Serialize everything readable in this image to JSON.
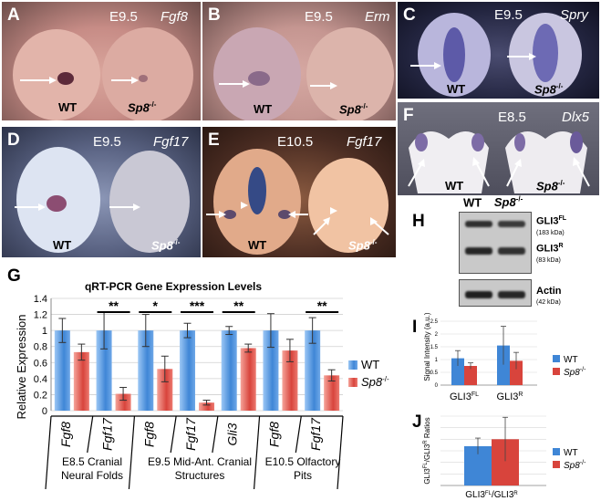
{
  "panels": {
    "A": {
      "label": "A",
      "stage": "E9.5",
      "gene": "Fgf8",
      "wt": "WT",
      "mut": "Sp8",
      "mut_sup": "-/-"
    },
    "B": {
      "label": "B",
      "stage": "E9.5",
      "gene": "Erm",
      "wt": "WT",
      "mut": "Sp8",
      "mut_sup": "-/-"
    },
    "C": {
      "label": "C",
      "stage": "E9.5",
      "gene": "Spry",
      "wt": "WT",
      "mut": "Sp8",
      "mut_sup": "-/-"
    },
    "D": {
      "label": "D",
      "stage": "E9.5",
      "gene": "Fgf17",
      "wt": "WT",
      "mut": "Sp8",
      "mut_sup": "-/-"
    },
    "E": {
      "label": "E",
      "stage": "E10.5",
      "gene": "Fgf17",
      "wt": "WT",
      "mut": "Sp8",
      "mut_sup": "-/-"
    },
    "F": {
      "label": "F",
      "stage": "E8.5",
      "gene": "Dlx5",
      "wt": "WT",
      "mut": "Sp8",
      "mut_sup": "-/-"
    }
  },
  "panel_G": {
    "label": "G",
    "sig_marks": [
      "**",
      "*",
      "***",
      "**",
      "**"
    ],
    "group_labels": [
      "E8.5 Cranial Neural Folds",
      "E9.5 Mid-Ant. Cranial Structures",
      "E10.5 Olfactory Pits"
    ]
  },
  "panel_H": {
    "label": "H",
    "wt": "WT",
    "mut": "Sp8",
    "mut_sup": "-/-",
    "band_fl": "GLI3",
    "band_fl_sup": "FL",
    "band_fl_kda": "(183 kDa)",
    "band_r": "GLI3",
    "band_r_sup": "R",
    "band_r_kda": "(83 kDa)",
    "actin": "Actin",
    "actin_kda": "(42 kDa)"
  },
  "panel_I": {
    "label": "I"
  },
  "panel_J": {
    "label": "J"
  },
  "colors": {
    "wt": "#3f86d6",
    "mut": "#d8443c",
    "wt_grad_light": "#9cc7f5",
    "mut_grad_light": "#f5a49a"
  },
  "chart_data": [
    {
      "type": "bar",
      "title": "qRT-PCR Gene Expression Levels",
      "ylabel": "Relative Expression",
      "ylim": [
        0,
        1.4
      ],
      "yticks": [
        "0",
        "0.2",
        "0.4",
        "0.6",
        "0.8",
        "1",
        "1.2",
        "1.4"
      ],
      "categories": [
        "Fgf8",
        "Fgf17",
        "Fgf8",
        "Fgf17",
        "Gli3",
        "Fgf8",
        "Fgf17"
      ],
      "series": [
        {
          "name": "WT",
          "values": [
            1.0,
            1.0,
            1.0,
            1.0,
            1.0,
            1.0,
            1.0
          ],
          "errors": [
            0.15,
            0.23,
            0.2,
            0.09,
            0.05,
            0.21,
            0.16
          ]
        },
        {
          "name": "Sp8",
          "name_sup": "-/-",
          "values": [
            0.73,
            0.21,
            0.52,
            0.1,
            0.78,
            0.75,
            0.44
          ],
          "errors": [
            0.1,
            0.08,
            0.16,
            0.03,
            0.05,
            0.14,
            0.07
          ]
        }
      ],
      "legend": "right"
    },
    {
      "type": "bar",
      "ylabel": "Signal Intensity (a.u.)",
      "ylim": [
        0,
        2.5
      ],
      "yticks": [
        "0",
        "0.5",
        "1",
        "1.5",
        "2",
        "2.5"
      ],
      "categories": [
        "GLI3",
        "GLI3"
      ],
      "category_sups": [
        "FL",
        "R"
      ],
      "series": [
        {
          "name": "WT",
          "values": [
            1.05,
            1.55
          ],
          "errors": [
            0.3,
            0.75
          ]
        },
        {
          "name": "Sp8",
          "name_sup": "-/-",
          "values": [
            0.75,
            0.95
          ],
          "errors": [
            0.12,
            0.33
          ]
        }
      ],
      "legend": "right"
    },
    {
      "type": "bar",
      "ylabel": "GLI3FL/GLI3R Ratios",
      "categories": [
        "GLI3FL/GLI3R"
      ],
      "series": [
        {
          "name": "WT",
          "values": [
            0.68
          ],
          "errors": [
            0.14
          ]
        },
        {
          "name": "Sp8",
          "name_sup": "-/-",
          "values": [
            0.8
          ],
          "errors": [
            0.38
          ]
        }
      ],
      "ylim": [
        0,
        1.2
      ],
      "legend": "right"
    }
  ]
}
